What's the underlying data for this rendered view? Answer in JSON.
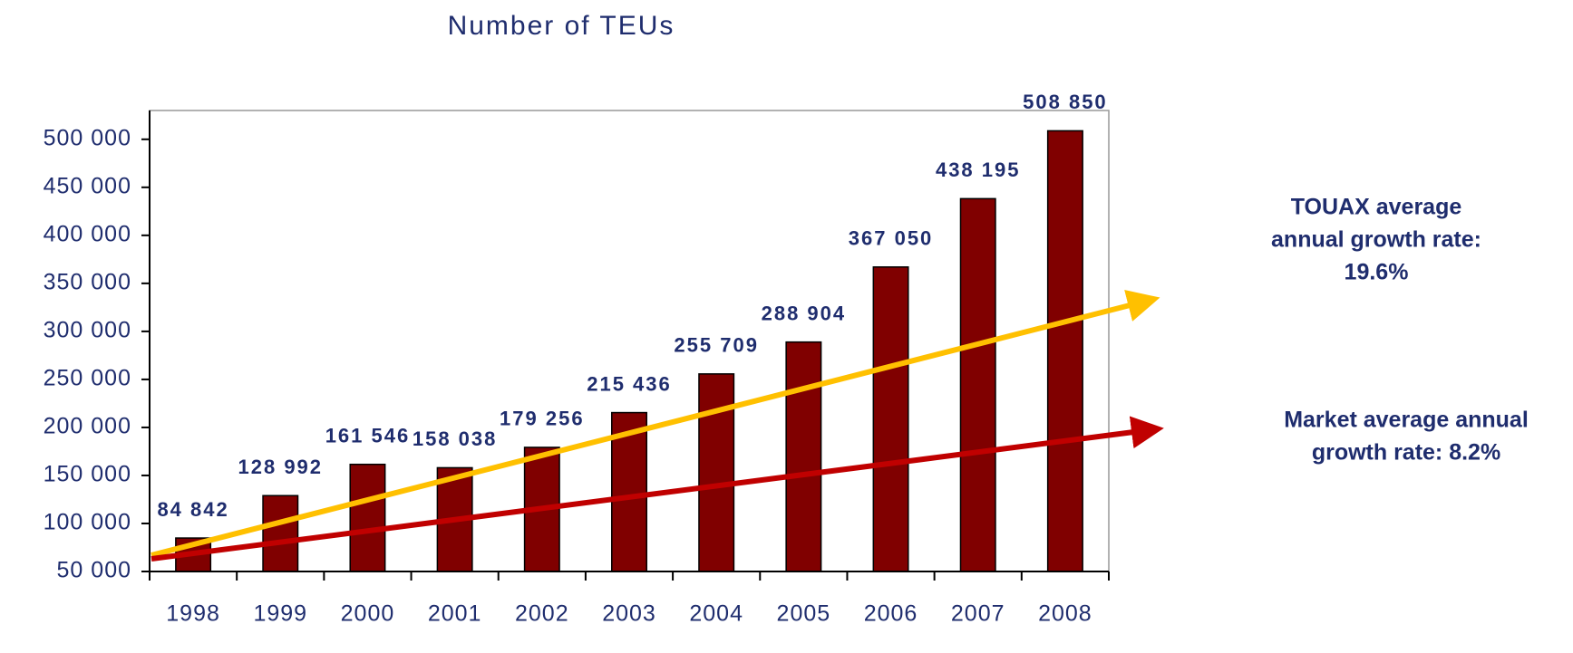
{
  "chart_data": {
    "type": "bar",
    "title": "Number of TEUs",
    "categories": [
      "1998",
      "1999",
      "2000",
      "2001",
      "2002",
      "2003",
      "2004",
      "2005",
      "2006",
      "2007",
      "2008"
    ],
    "values": [
      84842,
      128992,
      161546,
      158038,
      179256,
      215436,
      255709,
      288904,
      367050,
      438195,
      508850
    ],
    "value_labels": [
      "84 842",
      "128 992",
      "161 546",
      "158 038",
      "179 256",
      "215 436",
      "255 709",
      "288 904",
      "367 050",
      "438 195",
      "508 850"
    ],
    "color": "#800000",
    "ylim": [
      50000,
      530000
    ],
    "yticks": [
      {
        "value": 50000,
        "label": "50 000"
      },
      {
        "value": 100000,
        "label": "100 000"
      },
      {
        "value": 150000,
        "label": "150 000"
      },
      {
        "value": 200000,
        "label": "200 000"
      },
      {
        "value": 250000,
        "label": "250 000"
      },
      {
        "value": 300000,
        "label": "300 000"
      },
      {
        "value": 350000,
        "label": "350 000"
      },
      {
        "value": 400000,
        "label": "400 000"
      },
      {
        "value": 450000,
        "label": "450 000"
      },
      {
        "value": 500000,
        "label": "500 000"
      }
    ],
    "annotations": [
      {
        "lines": [
          "TOUAX average",
          "annual growth rate:",
          "19.6%"
        ],
        "color": "#ffc000"
      },
      {
        "lines": [
          "Market average annual",
          "growth rate: 8.2%"
        ],
        "color": "#c00000"
      }
    ]
  }
}
